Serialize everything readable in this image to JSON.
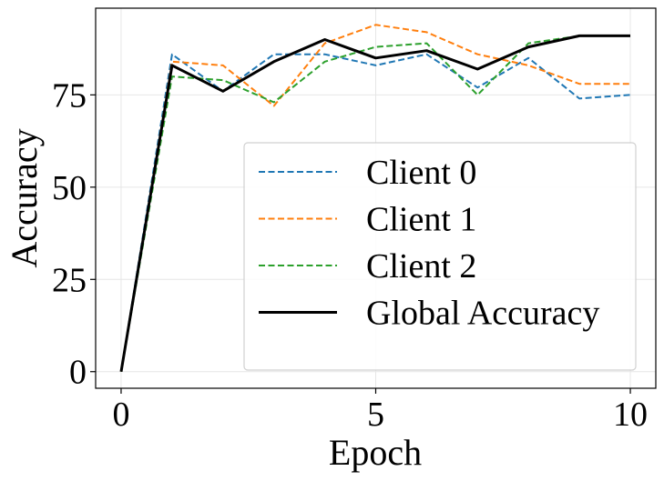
{
  "chart_data": {
    "type": "line",
    "title": "",
    "xlabel": "Epoch",
    "ylabel": "Accuracy",
    "xlim": [
      -0.5,
      10.5
    ],
    "ylim": [
      -4.5,
      98.5
    ],
    "xticks": [
      0,
      5,
      10
    ],
    "yticks": [
      0,
      25,
      50,
      75
    ],
    "grid": true,
    "legend_position": "lower-right",
    "x": [
      0,
      1,
      2,
      3,
      4,
      5,
      6,
      7,
      8,
      9,
      10
    ],
    "series": [
      {
        "name": "Client 0",
        "color": "#1f77b4",
        "style": "dashed",
        "values": [
          0,
          86,
          76,
          86,
          86,
          83,
          86,
          77,
          85,
          74,
          75
        ]
      },
      {
        "name": "Client 1",
        "color": "#ff7f0e",
        "style": "dashed",
        "values": [
          0,
          84,
          83,
          72,
          89,
          94,
          92,
          86,
          83,
          78,
          78
        ]
      },
      {
        "name": "Client 2",
        "color": "#2ca02c",
        "style": "dashed",
        "values": [
          0,
          80,
          79,
          73,
          84,
          88,
          89,
          75,
          89,
          91,
          91
        ]
      },
      {
        "name": "Global Accuracy",
        "color": "#000000",
        "style": "solid",
        "values": [
          0,
          83,
          76,
          84,
          90,
          85,
          87,
          82,
          88,
          91,
          91
        ]
      }
    ]
  }
}
